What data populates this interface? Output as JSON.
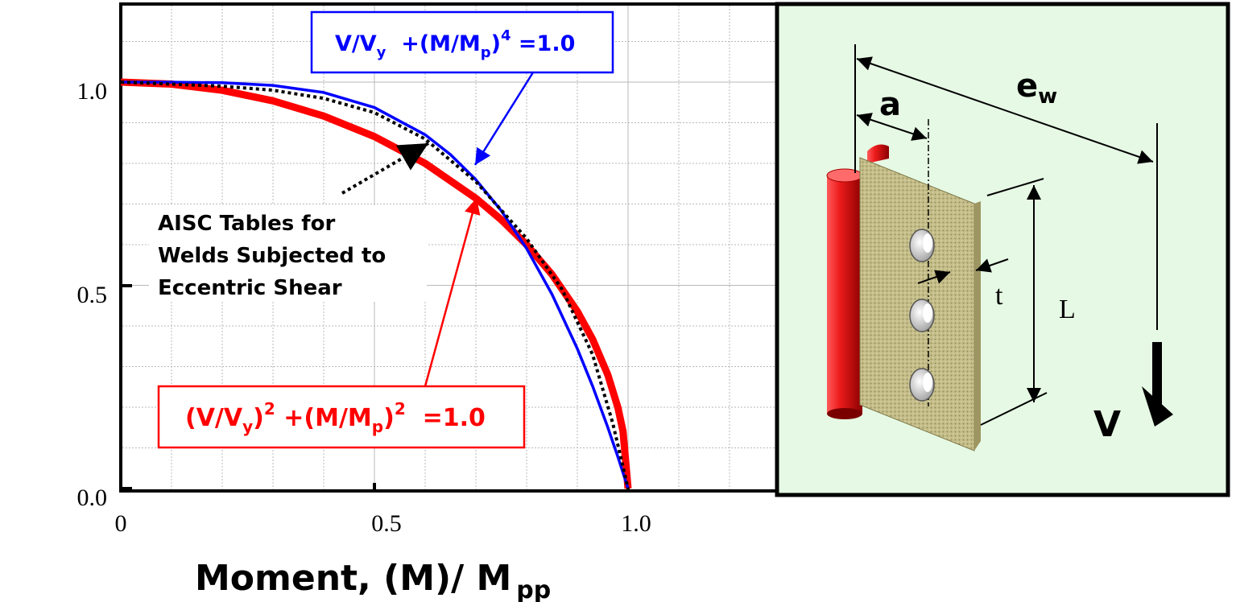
{
  "chart_data": {
    "type": "line",
    "title": "",
    "xlabel": "Moment,  (M)/ M",
    "xlabel_sub": "pp",
    "ylabel": "",
    "xlim": [
      0,
      1.3
    ],
    "ylim": [
      0,
      1.2
    ],
    "grid": true,
    "x_ticks": [
      "0",
      "0.5",
      "1.0"
    ],
    "y_ticks": [
      "0.0",
      "0.5",
      "1.0"
    ],
    "series": [
      {
        "equation": "V/Vy + (M/Mp)^4 = 1.0",
        "color": "#0000ff",
        "style": "solid",
        "points": [
          [
            0,
            1.0
          ],
          [
            0.1,
            0.9999
          ],
          [
            0.2,
            0.9984
          ],
          [
            0.3,
            0.9919
          ],
          [
            0.4,
            0.9744
          ],
          [
            0.5,
            0.9375
          ],
          [
            0.6,
            0.8704
          ],
          [
            0.65,
            0.8215
          ],
          [
            0.7,
            0.7599
          ],
          [
            0.75,
            0.6836
          ],
          [
            0.8,
            0.5904
          ],
          [
            0.85,
            0.478
          ],
          [
            0.9,
            0.3439
          ],
          [
            0.93,
            0.252
          ],
          [
            0.96,
            0.1507
          ],
          [
            0.98,
            0.0776
          ],
          [
            1.0,
            0.0
          ]
        ]
      },
      {
        "equation": "(V/Vy)^2 + (M/Mp)^2 = 1.0",
        "color": "#ff0000",
        "style": "thick",
        "points": [
          [
            0,
            1.0
          ],
          [
            0.1,
            0.995
          ],
          [
            0.2,
            0.9798
          ],
          [
            0.3,
            0.9539
          ],
          [
            0.4,
            0.9165
          ],
          [
            0.5,
            0.866
          ],
          [
            0.6,
            0.8
          ],
          [
            0.7,
            0.7141
          ],
          [
            0.75,
            0.6614
          ],
          [
            0.8,
            0.6
          ],
          [
            0.85,
            0.5268
          ],
          [
            0.9,
            0.4359
          ],
          [
            0.93,
            0.3676
          ],
          [
            0.96,
            0.28
          ],
          [
            0.98,
            0.199
          ],
          [
            0.99,
            0.1411
          ],
          [
            1.0,
            0.0
          ]
        ]
      },
      {
        "name": "AISC Tables for Welds Subjected to Eccentric Shear",
        "color": "#000000",
        "style": "dotted",
        "points": [
          [
            0,
            1.0
          ],
          [
            0.1,
            0.995
          ],
          [
            0.2,
            0.99
          ],
          [
            0.3,
            0.98
          ],
          [
            0.4,
            0.96
          ],
          [
            0.5,
            0.925
          ],
          [
            0.6,
            0.86
          ],
          [
            0.7,
            0.755
          ],
          [
            0.8,
            0.615
          ],
          [
            0.87,
            0.49
          ],
          [
            0.93,
            0.33
          ],
          [
            0.97,
            0.16
          ],
          [
            1.0,
            0.0
          ]
        ]
      }
    ],
    "annotations": {
      "blue_label": {
        "base1": "V/V",
        "sub1": "y",
        "mid": "  +(M/M",
        "sub2": "p",
        "close": ")",
        "sup": "4",
        "end": " =1.0"
      },
      "red_label": {
        "open": "(V/V",
        "sub1": "y",
        "mid": ")",
        "sup1": "2",
        "mid2": " +(M/M",
        "sub2": "p",
        "close": ")",
        "sup2": "2",
        "end": "  =1.0"
      },
      "aisc_label": [
        "AISC Tables for",
        "Welds Subjected to",
        "Eccentric Shear"
      ]
    }
  },
  "diagram": {
    "background": "#e6f9e4",
    "label_a": "a",
    "label_e": "e",
    "label_e_sub": "w",
    "label_t": "t",
    "label_L": "L",
    "label_V": "V",
    "colors": {
      "column": "#ee1c1c",
      "plate": "#c7c08e",
      "holes": "#d4d4d4"
    }
  }
}
